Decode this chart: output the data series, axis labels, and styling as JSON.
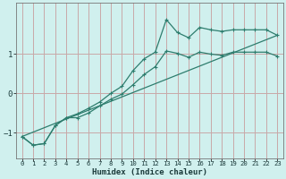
{
  "xlabel": "Humidex (Indice chaleur)",
  "bg_color": "#d0f0ee",
  "grid_color": "#c8a8a8",
  "line_color": "#2e7d6e",
  "xlim": [
    -0.5,
    23.5
  ],
  "ylim": [
    -1.65,
    2.3
  ],
  "xticks": [
    0,
    1,
    2,
    3,
    4,
    5,
    6,
    7,
    8,
    9,
    10,
    11,
    12,
    13,
    14,
    15,
    16,
    17,
    18,
    19,
    20,
    21,
    22,
    23
  ],
  "yticks": [
    -1,
    0,
    1
  ],
  "line1_x": [
    0,
    1,
    2,
    3,
    4,
    5,
    6,
    7,
    8,
    9,
    10,
    11,
    12,
    13,
    14,
    15,
    16,
    17,
    18,
    19,
    20,
    21,
    22,
    23
  ],
  "line1_y": [
    -1.1,
    -1.32,
    -1.28,
    -0.82,
    -0.62,
    -0.52,
    -0.38,
    -0.22,
    0.0,
    0.18,
    0.58,
    0.88,
    1.05,
    1.88,
    1.55,
    1.42,
    1.68,
    1.62,
    1.58,
    1.62,
    1.62,
    1.62,
    1.62,
    1.48
  ],
  "line2_x": [
    0,
    1,
    2,
    3,
    4,
    5,
    6,
    7,
    8,
    9,
    10,
    11,
    12,
    13,
    14,
    15,
    16,
    17,
    18,
    19,
    20,
    21,
    22,
    23
  ],
  "line2_y": [
    -1.1,
    -1.32,
    -1.28,
    -0.82,
    -0.62,
    -0.62,
    -0.5,
    -0.32,
    -0.15,
    -0.02,
    0.22,
    0.48,
    0.68,
    1.08,
    1.02,
    0.92,
    1.05,
    1.0,
    0.97,
    1.05,
    1.05,
    1.05,
    1.05,
    0.95
  ],
  "line3_x": [
    0,
    23
  ],
  "line3_y": [
    -1.1,
    1.48
  ]
}
